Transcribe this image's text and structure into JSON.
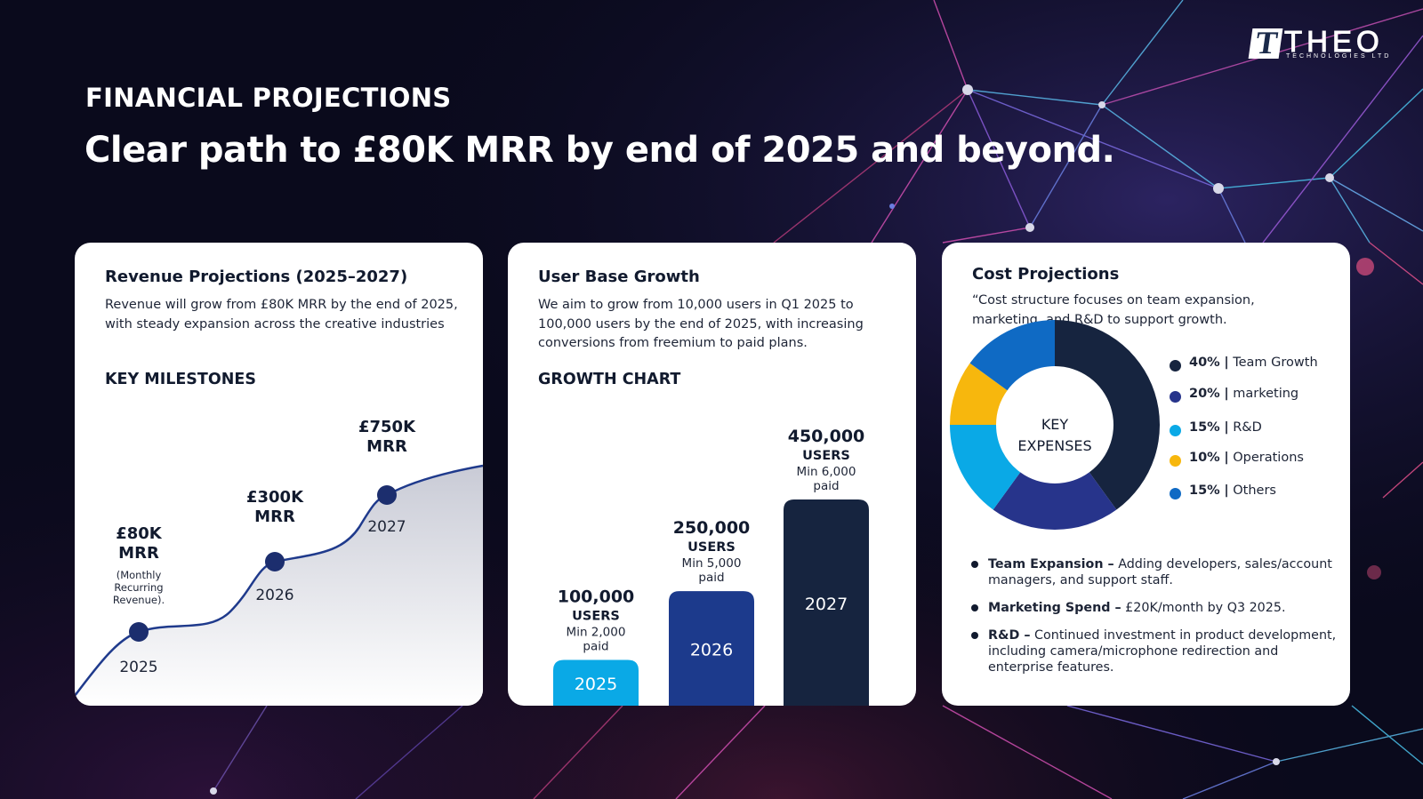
{
  "brand": {
    "logo_mark": "T",
    "name": "THEO",
    "subtitle": "TECHNOLOGIES LTD"
  },
  "header": {
    "eyebrow": "FINANCIAL PROJECTIONS",
    "headline": "Clear path to £80K MRR by end of 2025 and beyond."
  },
  "revenue_card": {
    "title": "Revenue Projections (2025–2027)",
    "description": "Revenue will grow from £80K MRR by the end of 2025, with steady expansion across the creative industries",
    "section_label": "KEY MILESTONES",
    "milestones": [
      {
        "year": "2025",
        "value": "£80K",
        "unit": "MRR",
        "note": [
          "(Monthly",
          "Recurring",
          "Revenue)."
        ]
      },
      {
        "year": "2026",
        "value": "£300K",
        "unit": "MRR",
        "note": []
      },
      {
        "year": "2027",
        "value": "£750K",
        "unit": "MRR",
        "note": []
      }
    ]
  },
  "users_card": {
    "title": "User Base Growth",
    "description": "We aim to grow from 10,000 users in Q1 2025 to 100,000 users by the end of 2025, with increasing conversions from freemium to paid plans.",
    "section_label": "GROWTH CHART"
  },
  "cost_card": {
    "title": "Cost Projections",
    "description": "“Cost structure focuses on team expansion, marketing, and R&D to support growth.",
    "donut_center": [
      "KEY",
      "EXPENSES"
    ],
    "legend": [
      {
        "pct": "40%",
        "label": "Team Growth",
        "color": "#16243f"
      },
      {
        "pct": "20%",
        "label": "marketing",
        "color": "#27348b"
      },
      {
        "pct": "15%",
        "label": "R&D",
        "color": "#0aa9e6"
      },
      {
        "pct": "10%",
        "label": "Operations",
        "color": "#f7b70d"
      },
      {
        "pct": "15%",
        "label": "Others",
        "color": "#0f6ac4"
      }
    ],
    "bullets": [
      {
        "bold": "Team Expansion –",
        "text": " Adding developers, sales/account managers, and support staff."
      },
      {
        "bold": "Marketing Spend –",
        "text": " £20K/month by Q3 2025."
      },
      {
        "bold": "R&D –",
        "text": " Continued investment in product development, including camera/microphone redirection and enterprise features."
      }
    ]
  },
  "chart_data": [
    {
      "type": "line",
      "x": [
        "2025",
        "2026",
        "2027"
      ],
      "series": [
        {
          "values": [
            80,
            300,
            750
          ]
        }
      ],
      "data_labels": [
        "£80K MRR",
        "£300K MRR",
        "£750K MRR"
      ]
    },
    {
      "type": "bar",
      "categories": [
        "2025",
        "2026",
        "2027"
      ],
      "values": [
        100000,
        250000,
        450000
      ],
      "value_labels": [
        "100,000",
        "250,000",
        "450,000"
      ],
      "unit_label": "USERS",
      "sub_labels": [
        "Min 2,000 paid",
        "Min 5,000 paid",
        "Min 6,000 paid"
      ],
      "colors": [
        "#0aa9e6",
        "#1c3a8c",
        "#16243f"
      ]
    },
    {
      "type": "pie",
      "categories": [
        "Team Growth",
        "marketing",
        "R&D",
        "Operations",
        "Others"
      ],
      "values": [
        40,
        20,
        15,
        10,
        15
      ],
      "colors": [
        "#16243f",
        "#27348b",
        "#0aa9e6",
        "#f7b70d",
        "#0f6ac4"
      ]
    }
  ]
}
